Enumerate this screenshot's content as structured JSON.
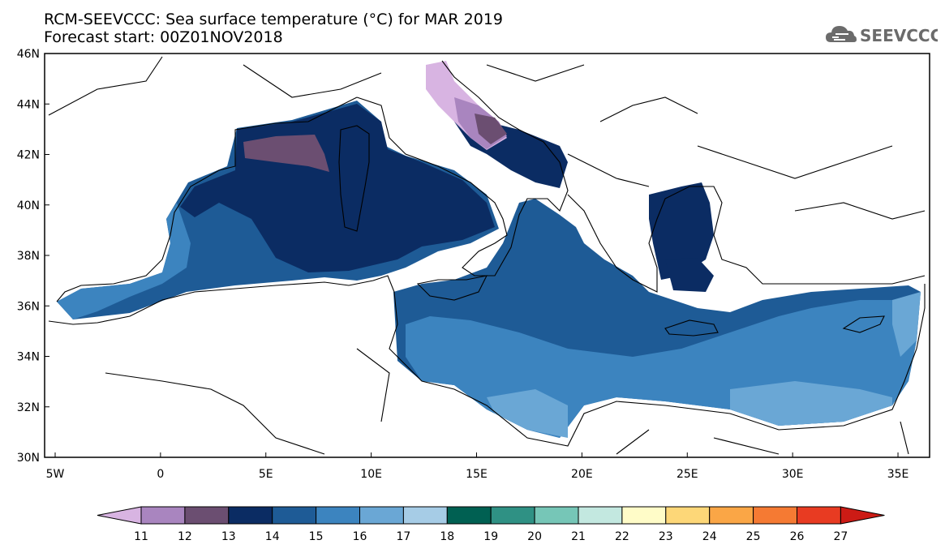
{
  "header": {
    "title_line1": "RCM-SEEVCCC: Sea surface temperature (°C) for MAR 2019",
    "title_line2": "Forecast start: 00Z01NOV2018"
  },
  "logo": {
    "text": "SEEVCCC",
    "icon": "cloud-icon"
  },
  "map": {
    "lon_range": [
      -5.5,
      36.5
    ],
    "lat_range": [
      30,
      46
    ],
    "lon_ticks": [
      "5W",
      "0",
      "5E",
      "10E",
      "15E",
      "20E",
      "25E",
      "30E",
      "35E"
    ],
    "lat_ticks": [
      "46N",
      "44N",
      "42N",
      "40N",
      "38N",
      "36N",
      "34N",
      "32N",
      "30N"
    ]
  },
  "legend": {
    "labels": [
      "11",
      "12",
      "13",
      "14",
      "15",
      "16",
      "17",
      "18",
      "19",
      "20",
      "21",
      "22",
      "23",
      "24",
      "25",
      "26",
      "27"
    ],
    "colors": [
      "#d8b4e2",
      "#a985bf",
      "#6b4e71",
      "#0b2c63",
      "#1e5b96",
      "#3c84bf",
      "#6aa7d5",
      "#a6cce6",
      "#006052",
      "#2f9184",
      "#76c6b7",
      "#c3e8e0",
      "#fffcc8",
      "#fdd778",
      "#faa646",
      "#f57a33",
      "#e83b22",
      "#cc1b15"
    ]
  }
}
